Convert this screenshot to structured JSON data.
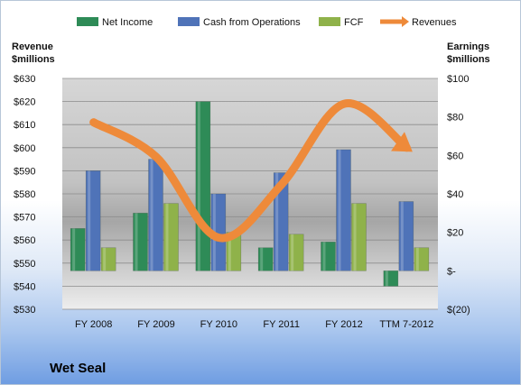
{
  "chart_data": {
    "type": "bar",
    "title": "Wet Seal",
    "categories": [
      "FY 2008",
      "FY 2009",
      "FY 2010",
      "FY 2011",
      "FY 2012",
      "TTM 7-2012"
    ],
    "left_axis": {
      "label_line1": "Revenue",
      "label_line2": "$millions",
      "range": [
        530,
        630
      ],
      "ticks": [
        "$630",
        "$620",
        "$610",
        "$600",
        "$590",
        "$580",
        "$570",
        "$560",
        "$550",
        "$540",
        "$530"
      ],
      "tick_values": [
        630,
        620,
        610,
        600,
        590,
        580,
        570,
        560,
        550,
        540,
        530
      ]
    },
    "right_axis": {
      "label_line1": "Earnings",
      "label_line2": "$millions",
      "range": [
        -20,
        100
      ],
      "ticks": [
        "$100",
        "$80",
        "$60",
        "$40",
        "$20",
        "$-",
        "$(20)"
      ],
      "tick_values": [
        100,
        80,
        60,
        40,
        20,
        0,
        -20
      ]
    },
    "series": [
      {
        "name": "Net Income",
        "axis": "right",
        "color": "#2e8b57",
        "values": [
          22,
          30,
          88,
          12,
          15,
          -8
        ]
      },
      {
        "name": "Cash from Operations",
        "axis": "right",
        "color": "#4f73b8",
        "values": [
          52,
          58,
          40,
          51,
          63,
          36
        ]
      },
      {
        "name": "FCF",
        "axis": "right",
        "color": "#8fb24a",
        "values": [
          12,
          35,
          20,
          19,
          35,
          12
        ]
      },
      {
        "name": "Revenues",
        "axis": "left",
        "type": "line",
        "color": "#ee8a3a",
        "values": [
          611,
          596,
          561,
          584,
          619,
          600
        ]
      }
    ],
    "legend_position": "top",
    "grid": true
  },
  "colors": {
    "net_income": "#2e8b57",
    "cash_ops": "#4f73b8",
    "fcf": "#8fb24a",
    "revenues": "#ee8a3a"
  }
}
